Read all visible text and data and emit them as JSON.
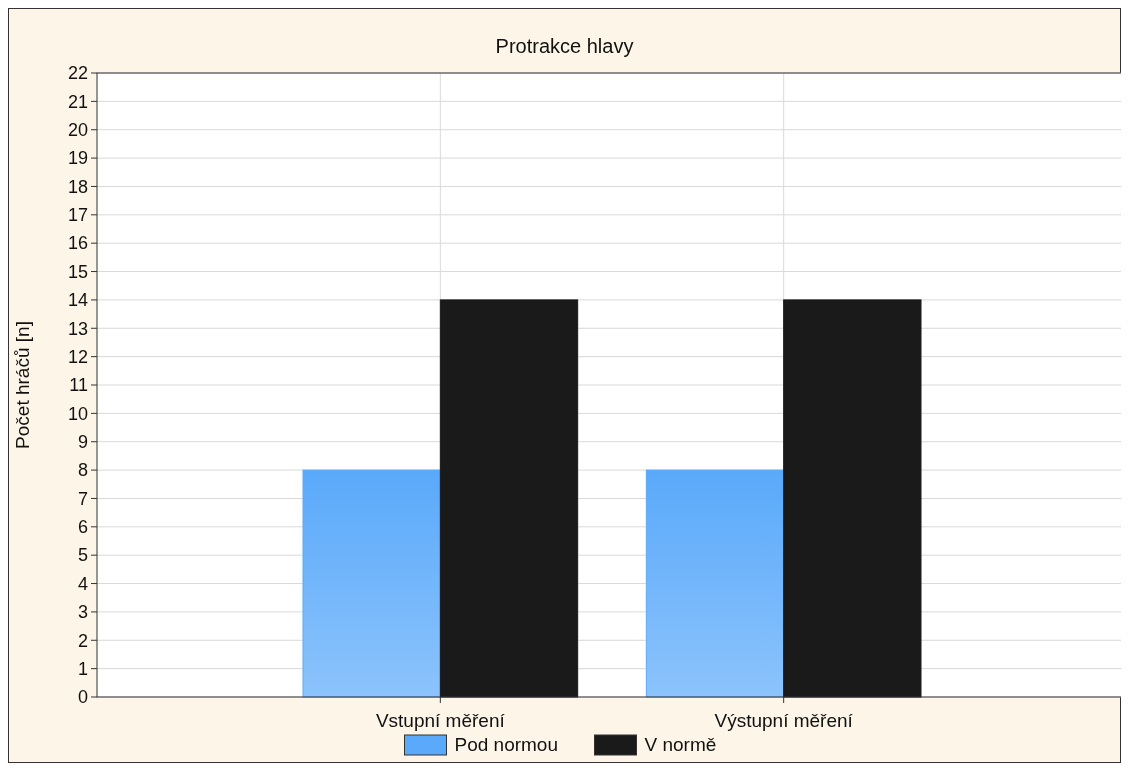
{
  "chart_data": {
    "type": "bar",
    "title": "Protrakce hlavy",
    "ylabel": "Počet hráčů [n]",
    "categories": [
      "Vstupní měření",
      "Výstupní měření"
    ],
    "series": [
      {
        "name": "Pod normou",
        "color": "#5aa9fa",
        "values": [
          8,
          8
        ]
      },
      {
        "name": "V normě",
        "color": "#1a1a1a",
        "values": [
          14,
          14
        ]
      }
    ],
    "ylim": [
      0,
      22
    ],
    "yticks": [
      0,
      1,
      2,
      3,
      4,
      5,
      6,
      7,
      8,
      9,
      10,
      11,
      12,
      13,
      14,
      15,
      16,
      17,
      18,
      19,
      20,
      21,
      22
    ],
    "grid": true,
    "legend": "bottom"
  }
}
